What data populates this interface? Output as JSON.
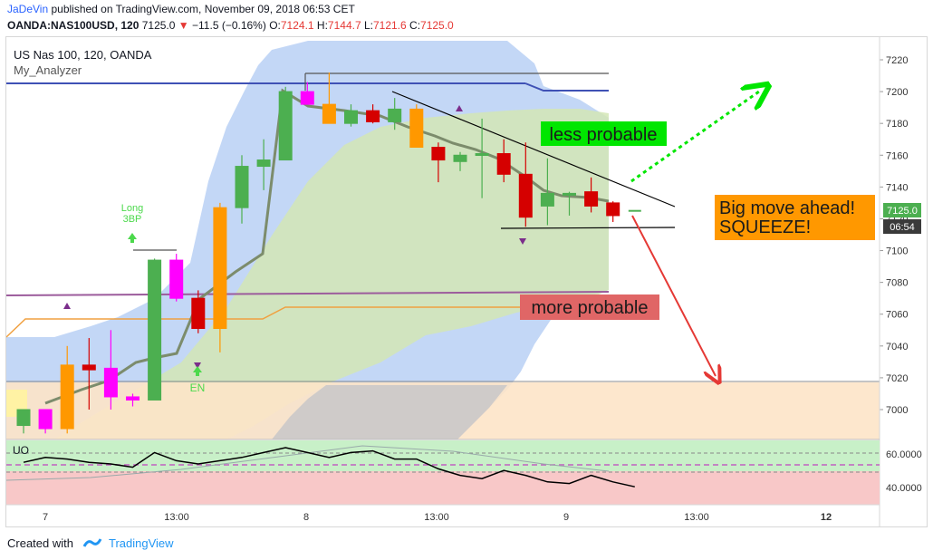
{
  "header": {
    "author": "JaDeVin",
    "published": " published on TradingView.com, November 09, 2018 06:53 CET",
    "symbol": "OANDA:NAS100USD, 120",
    "last": "7125.0",
    "change_arrow": "▼",
    "change": "−11.5 (−0.16%)",
    "o_label": "O:",
    "o": "7124.1",
    "h_label": "H:",
    "h": "7144.7",
    "l_label": "L:",
    "l": "7121.6",
    "c_label": "C:",
    "c": "7125.0"
  },
  "legend": {
    "title": "US Nas 100, 120, OANDA",
    "indicator": "My_Analyzer"
  },
  "annotations": {
    "less_probable": "less probable",
    "more_probable": "more probable",
    "big_move_1": "Big move ahead!",
    "big_move_2": "SQUEEZE!",
    "long_1": "Long",
    "long_2": "3BP",
    "en": "EN"
  },
  "price_badge": {
    "price": "7125.0",
    "time": "06:54"
  },
  "oscillator": {
    "label": "UO",
    "ticks": [
      "60.0000",
      "40.0000"
    ],
    "levels": [
      50,
      60,
      40
    ],
    "ylim": [
      30,
      70
    ]
  },
  "footer": {
    "created_with": "Created with",
    "brand": "TradingView"
  },
  "colors": {
    "bull": "#4caf50",
    "bear": "#d50000",
    "bull_alt": "#ff9800",
    "bear_alt": "#ff00ff",
    "trend": "#3f51b5",
    "support": "#9c5c9c",
    "cloud_blue": "#b8d0f5",
    "cloud_green": "#d4e6b5",
    "zone": "#fde4c8",
    "less_bg": "#00e600",
    "more_bg": "#e06666",
    "big_bg": "#ff9800"
  },
  "chart_data": {
    "type": "candlestick",
    "title": "US Nas 100, 120, OANDA",
    "interval": "120",
    "ylim": [
      6980,
      7230
    ],
    "y_ticks": [
      7000,
      7020,
      7040,
      7060,
      7080,
      7100,
      7120,
      7140,
      7160,
      7180,
      7200,
      7220
    ],
    "x_tick_labels": [
      "7",
      "13:00",
      "8",
      "13:00",
      "9",
      "13:00",
      "12"
    ],
    "candles": [
      {
        "o": 6990,
        "h": 7000,
        "l": 6985,
        "c": 7000,
        "color": "bull"
      },
      {
        "o": 7000,
        "h": 7000,
        "l": 6985,
        "c": 6988,
        "color": "bear_alt"
      },
      {
        "o": 6988,
        "h": 7040,
        "l": 6985,
        "c": 7028,
        "color": "bull_alt"
      },
      {
        "o": 7028,
        "h": 7045,
        "l": 7000,
        "c": 7025,
        "color": "bear"
      },
      {
        "o": 7026,
        "h": 7050,
        "l": 7000,
        "c": 7008,
        "color": "bear_alt"
      },
      {
        "o": 7008,
        "h": 7010,
        "l": 7002,
        "c": 7006,
        "color": "bear_alt"
      },
      {
        "o": 7006,
        "h": 7095,
        "l": 7006,
        "c": 7094,
        "color": "bull"
      },
      {
        "o": 7094,
        "h": 7098,
        "l": 7068,
        "c": 7070,
        "color": "bear_alt"
      },
      {
        "o": 7070,
        "h": 7075,
        "l": 7048,
        "c": 7051,
        "color": "bear"
      },
      {
        "o": 7051,
        "h": 7130,
        "l": 7036,
        "c": 7127,
        "color": "bull_alt"
      },
      {
        "o": 7127,
        "h": 7160,
        "l": 7117,
        "c": 7153,
        "color": "bull"
      },
      {
        "o": 7153,
        "h": 7170,
        "l": 7138,
        "c": 7157,
        "color": "bull"
      },
      {
        "o": 7157,
        "h": 7203,
        "l": 7157,
        "c": 7200,
        "color": "bull"
      },
      {
        "o": 7200,
        "h": 7206,
        "l": 7192,
        "c": 7192,
        "color": "bear_alt"
      },
      {
        "o": 7192,
        "h": 7212,
        "l": 7180,
        "c": 7180,
        "color": "bull_alt"
      },
      {
        "o": 7180,
        "h": 7192,
        "l": 7178,
        "c": 7188,
        "color": "bull"
      },
      {
        "o": 7188,
        "h": 7192,
        "l": 7180,
        "c": 7181,
        "color": "bear"
      },
      {
        "o": 7181,
        "h": 7196,
        "l": 7176,
        "c": 7189,
        "color": "bull"
      },
      {
        "o": 7189,
        "h": 7192,
        "l": 7165,
        "c": 7165,
        "color": "bull_alt"
      },
      {
        "o": 7165,
        "h": 7168,
        "l": 7143,
        "c": 7157,
        "color": "bear"
      },
      {
        "o": 7156,
        "h": 7162,
        "l": 7150,
        "c": 7160,
        "color": "bull"
      },
      {
        "o": 7160,
        "h": 7183,
        "l": 7133,
        "c": 7161,
        "color": "bull"
      },
      {
        "o": 7161,
        "h": 7170,
        "l": 7143,
        "c": 7148,
        "color": "bear"
      },
      {
        "o": 7148,
        "h": 7168,
        "l": 7115,
        "c": 7121,
        "color": "bear"
      },
      {
        "o": 7128,
        "h": 7158,
        "l": 7116,
        "c": 7136,
        "color": "bull"
      },
      {
        "o": 7135,
        "h": 7137,
        "l": 7122,
        "c": 7136,
        "color": "bull"
      },
      {
        "o": 7137,
        "h": 7146,
        "l": 7124,
        "c": 7128,
        "color": "bear"
      },
      {
        "o": 7130,
        "h": 7131,
        "l": 7118,
        "c": 7122,
        "color": "bear"
      },
      {
        "o": 7125,
        "h": 7125,
        "l": 7125,
        "c": 7125,
        "color": "bull"
      }
    ],
    "oscillator_values": [
      56,
      59,
      58,
      56,
      55,
      53,
      62,
      57,
      55,
      57,
      59,
      62,
      65,
      62,
      59,
      62,
      63,
      58,
      58,
      52,
      48,
      46,
      51,
      48,
      44,
      43,
      48,
      44,
      41
    ]
  }
}
